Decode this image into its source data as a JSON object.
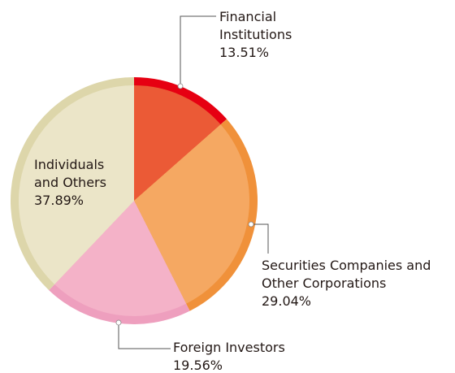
{
  "chart_data": {
    "type": "pie",
    "categories": [
      "Financial Institutions",
      "Securities Companies and Other Corporations",
      "Foreign Investors",
      "Individuals and Others"
    ],
    "values": [
      13.51,
      29.04,
      19.56,
      37.89
    ],
    "value_labels": [
      "13.51%",
      "29.04%",
      "19.56%",
      "37.89%"
    ],
    "colors": [
      "#eb5a36",
      "#f5a862",
      "#f4b2c8",
      "#ebe5c8"
    ],
    "edge_colors": [
      "#e60012",
      "#f0913a",
      "#ee9fbe",
      "#ddd6aa"
    ]
  }
}
